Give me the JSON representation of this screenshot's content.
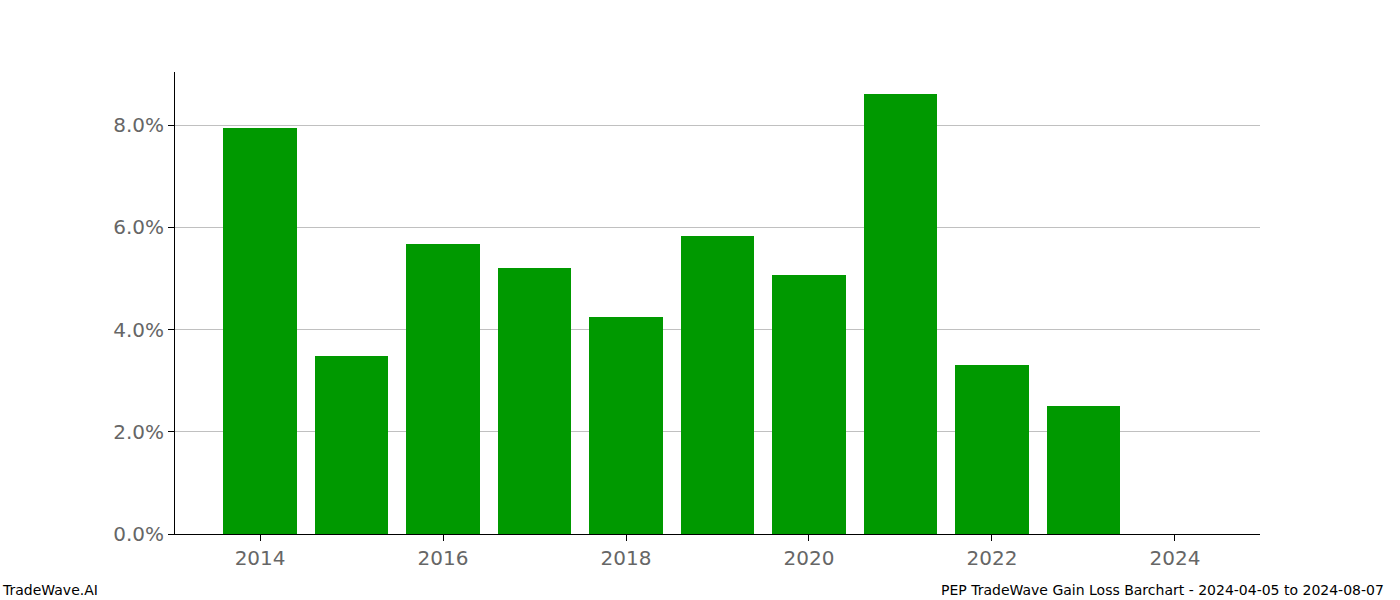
{
  "chart_data": {
    "type": "bar",
    "annotations": [
      "TradeWave.AI",
      "PEP TradeWave Gain Loss Barchart - 2024-04-05 to 2024-08-07"
    ],
    "x": [
      2014,
      2015,
      2016,
      2017,
      2018,
      2019,
      2020,
      2021,
      2022,
      2023
    ],
    "values": [
      7.95,
      3.48,
      5.67,
      5.2,
      4.25,
      5.83,
      5.07,
      8.6,
      3.3,
      2.5
    ],
    "color": "#009900",
    "xlim": [
      2013.07,
      2024.93
    ],
    "xticks": [
      2014,
      2016,
      2018,
      2020,
      2022,
      2024
    ],
    "ylim": [
      0,
      9.04
    ],
    "yticks": [
      {
        "value": 0,
        "label": "0.0%"
      },
      {
        "value": 2,
        "label": "2.0%"
      },
      {
        "value": 4,
        "label": "4.0%"
      },
      {
        "value": 6,
        "label": "6.0%"
      },
      {
        "value": 8,
        "label": "8.0%"
      }
    ],
    "grid": true
  }
}
